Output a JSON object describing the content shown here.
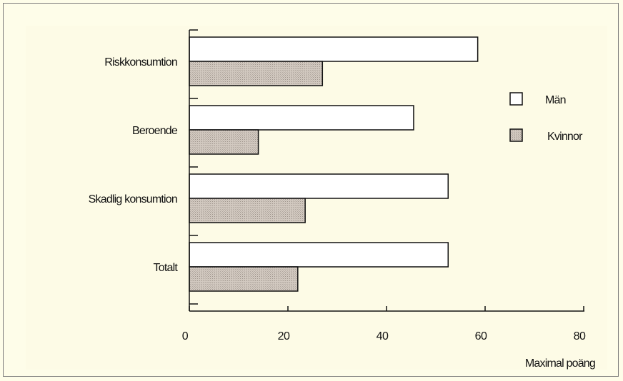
{
  "chart_data": {
    "type": "bar",
    "orientation": "horizontal",
    "categories": [
      "Riskkonsumtion",
      "Beroende",
      "Skadlig konsumtion",
      "Totalt"
    ],
    "series": [
      {
        "name": "Män",
        "values": [
          58.5,
          45.5,
          52.5,
          52.5
        ],
        "color": "#ffffff"
      },
      {
        "name": "Kvinnor",
        "values": [
          27,
          14,
          23.5,
          22
        ],
        "color": "#c8beb5"
      }
    ],
    "xlim": [
      0,
      80
    ],
    "xticks": [
      "0",
      "20",
      "40",
      "60",
      "80"
    ],
    "xlabel": "Maximal poäng",
    "legend_position": "right",
    "grid": false
  },
  "colors": {
    "background": "#fefde9",
    "bar_outline": "#111111",
    "kvinnor_fill": "#c8beb5"
  }
}
